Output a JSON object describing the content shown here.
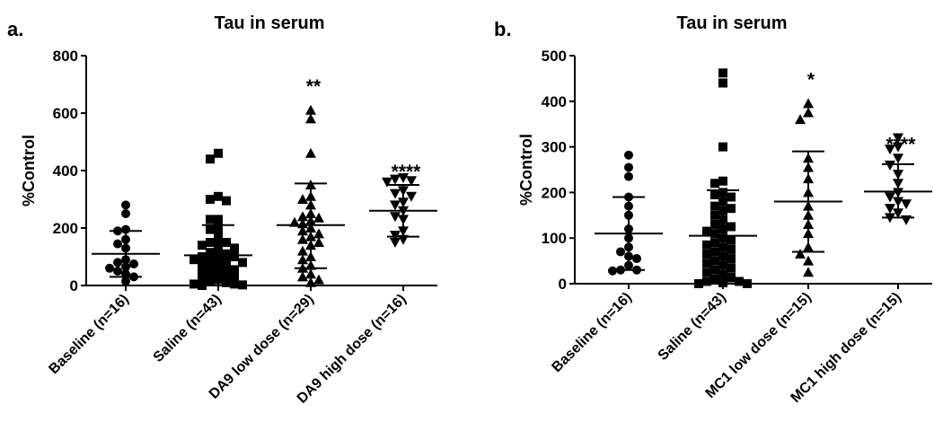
{
  "chart_data": [
    {
      "panel_label": "a.",
      "type": "scatter",
      "title": "Tau in serum",
      "xlabel": "",
      "ylabel": "%Control",
      "ylim": [
        0,
        800
      ],
      "yticks": [
        0,
        200,
        400,
        600,
        800
      ],
      "grid": false,
      "categories": [
        "Baseline (n=16)",
        "Saline (n=43)",
        "DA9 low dose (n=29)",
        "DA9 high dose (n=16)"
      ],
      "markers": [
        "circle",
        "square",
        "triangle-up",
        "triangle-down"
      ],
      "significance": [
        "",
        "",
        "**",
        "****"
      ],
      "summary": [
        {
          "mean": 110,
          "sd_low": 30,
          "sd_high": 190
        },
        {
          "mean": 105,
          "sd_low": 0,
          "sd_high": 210
        },
        {
          "mean": 210,
          "sd_low": 60,
          "sd_high": 355
        },
        {
          "mean": 260,
          "sd_low": 170,
          "sd_high": 350
        }
      ],
      "series": [
        {
          "values": [
            280,
            250,
            195,
            190,
            160,
            145,
            130,
            90,
            80,
            75,
            65,
            60,
            50,
            40,
            30,
            15
          ]
        },
        {
          "values": [
            460,
            440,
            310,
            300,
            295,
            230,
            230,
            200,
            195,
            170,
            150,
            150,
            145,
            140,
            130,
            120,
            115,
            110,
            100,
            100,
            95,
            90,
            90,
            85,
            80,
            75,
            70,
            65,
            60,
            55,
            50,
            45,
            40,
            35,
            30,
            25,
            20,
            15,
            10,
            5,
            5,
            2,
            0
          ]
        },
        {
          "values": [
            610,
            580,
            460,
            350,
            310,
            300,
            280,
            250,
            240,
            235,
            225,
            220,
            215,
            200,
            190,
            180,
            170,
            160,
            150,
            140,
            120,
            100,
            90,
            70,
            60,
            40,
            30,
            20,
            10
          ]
        },
        {
          "values": [
            375,
            370,
            365,
            360,
            330,
            320,
            310,
            290,
            280,
            260,
            240,
            230,
            190,
            175,
            160,
            150
          ]
        }
      ]
    },
    {
      "panel_label": "b.",
      "type": "scatter",
      "title": "Tau in serum",
      "xlabel": "",
      "ylabel": "%Control",
      "ylim": [
        0,
        500
      ],
      "yticks": [
        0,
        100,
        200,
        300,
        400,
        500
      ],
      "grid": false,
      "categories": [
        "Baseline (n=16)",
        "Saline (n=43)",
        "MC1 low dose (n=15)",
        "MC1 high dose (n=15)"
      ],
      "markers": [
        "circle",
        "square",
        "triangle-up",
        "triangle-down"
      ],
      "significance": [
        "",
        "",
        "*",
        "****"
      ],
      "summary": [
        {
          "mean": 110,
          "sd_low": 30,
          "sd_high": 190
        },
        {
          "mean": 105,
          "sd_low": 5,
          "sd_high": 205
        },
        {
          "mean": 180,
          "sd_low": 70,
          "sd_high": 290
        },
        {
          "mean": 202,
          "sd_low": 145,
          "sd_high": 262
        }
      ],
      "series": [
        {
          "values": [
            282,
            255,
            235,
            190,
            170,
            150,
            120,
            100,
            80,
            70,
            60,
            55,
            40,
            30,
            30,
            28
          ]
        },
        {
          "values": [
            462,
            440,
            300,
            225,
            220,
            200,
            195,
            190,
            180,
            170,
            165,
            160,
            150,
            140,
            130,
            125,
            120,
            115,
            110,
            100,
            95,
            90,
            85,
            80,
            75,
            70,
            65,
            60,
            55,
            50,
            45,
            40,
            35,
            30,
            25,
            20,
            15,
            10,
            5,
            5,
            2,
            0,
            0
          ]
        },
        {
          "values": [
            395,
            375,
            360,
            275,
            255,
            230,
            200,
            170,
            150,
            130,
            110,
            80,
            65,
            50,
            25
          ]
        },
        {
          "values": [
            320,
            300,
            295,
            275,
            260,
            240,
            220,
            200,
            190,
            180,
            175,
            165,
            155,
            145,
            140
          ]
        }
      ]
    }
  ]
}
